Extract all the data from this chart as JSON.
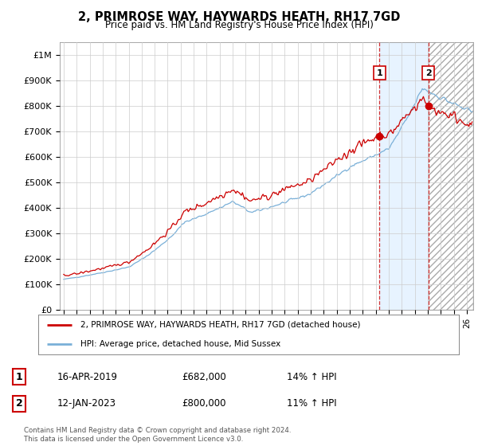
{
  "title": "2, PRIMROSE WAY, HAYWARDS HEATH, RH17 7GD",
  "subtitle": "Price paid vs. HM Land Registry's House Price Index (HPI)",
  "ylim": [
    0,
    1050000
  ],
  "yticks": [
    0,
    100000,
    200000,
    300000,
    400000,
    500000,
    600000,
    700000,
    800000,
    900000,
    1000000
  ],
  "ytick_labels": [
    "£0",
    "£100K",
    "£200K",
    "£300K",
    "£400K",
    "£500K",
    "£600K",
    "£700K",
    "£800K",
    "£900K",
    "£1M"
  ],
  "x_start_year": 1995,
  "x_end_year": 2026,
  "sale1_date": 2019.29,
  "sale1_price": 682000,
  "sale1_label": "1",
  "sale2_date": 2023.04,
  "sale2_price": 800000,
  "sale2_label": "2",
  "hpi_color": "#7ab0d8",
  "price_color": "#cc0000",
  "sale_vline_color": "#cc0000",
  "shade_color": "#ddeeff",
  "hatch_color": "#cccccc",
  "grid_color": "#cccccc",
  "background_color": "#ffffff",
  "legend_label_price": "2, PRIMROSE WAY, HAYWARDS HEATH, RH17 7GD (detached house)",
  "legend_label_hpi": "HPI: Average price, detached house, Mid Sussex",
  "annotation1_date": "16-APR-2019",
  "annotation1_price": "£682,000",
  "annotation1_hpi": "14% ↑ HPI",
  "annotation2_date": "12-JAN-2023",
  "annotation2_price": "£800,000",
  "annotation2_hpi": "11% ↑ HPI",
  "footnote": "Contains HM Land Registry data © Crown copyright and database right 2024.\nThis data is licensed under the Open Government Licence v3.0."
}
